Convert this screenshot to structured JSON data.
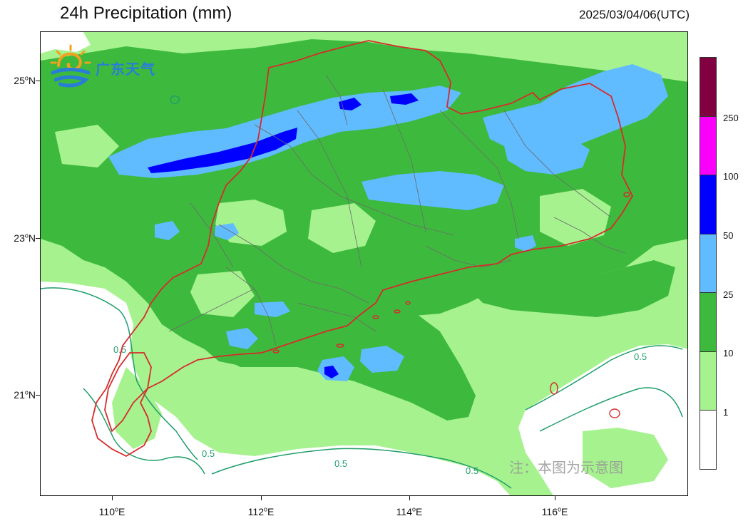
{
  "header": {
    "title": "24h Precipitation (mm)",
    "timestamp": "2025/03/04/06(UTC)"
  },
  "logo": {
    "text": "广东天气",
    "icon": "weather-sun-swirl-icon"
  },
  "note": "注：本图为示意图",
  "map": {
    "latitude_labels": [
      {
        "deg": "25",
        "unit": "o",
        "hemi": "N"
      },
      {
        "deg": "23",
        "unit": "o",
        "hemi": "N"
      },
      {
        "deg": "21",
        "unit": "o",
        "hemi": "N"
      }
    ],
    "longitude_labels": [
      {
        "deg": "110",
        "unit": "o",
        "hemi": "E"
      },
      {
        "deg": "112",
        "unit": "o",
        "hemi": "E"
      },
      {
        "deg": "114",
        "unit": "o",
        "hemi": "E"
      },
      {
        "deg": "116",
        "unit": "o",
        "hemi": "E"
      }
    ],
    "contour_label": "0.5",
    "colors": {
      "below_1": "#ffffff",
      "1_10": "#a6f28f",
      "10_25": "#3dba3d",
      "25_50": "#61bbff",
      "50_100": "#0000ff",
      "100_250": "#fa00fa",
      "over_250": "#800040",
      "province_border": "#d62b2b",
      "county_border": "#6b6b6b",
      "contour_line": "#1f9e6a"
    }
  },
  "legend": {
    "swatch_colors": [
      "#800040",
      "#fa00fa",
      "#0000ff",
      "#61bbff",
      "#3dba3d",
      "#a6f28f",
      "#ffffff"
    ],
    "labels": [
      "250",
      "100",
      "50",
      "25",
      "10",
      "1"
    ]
  }
}
